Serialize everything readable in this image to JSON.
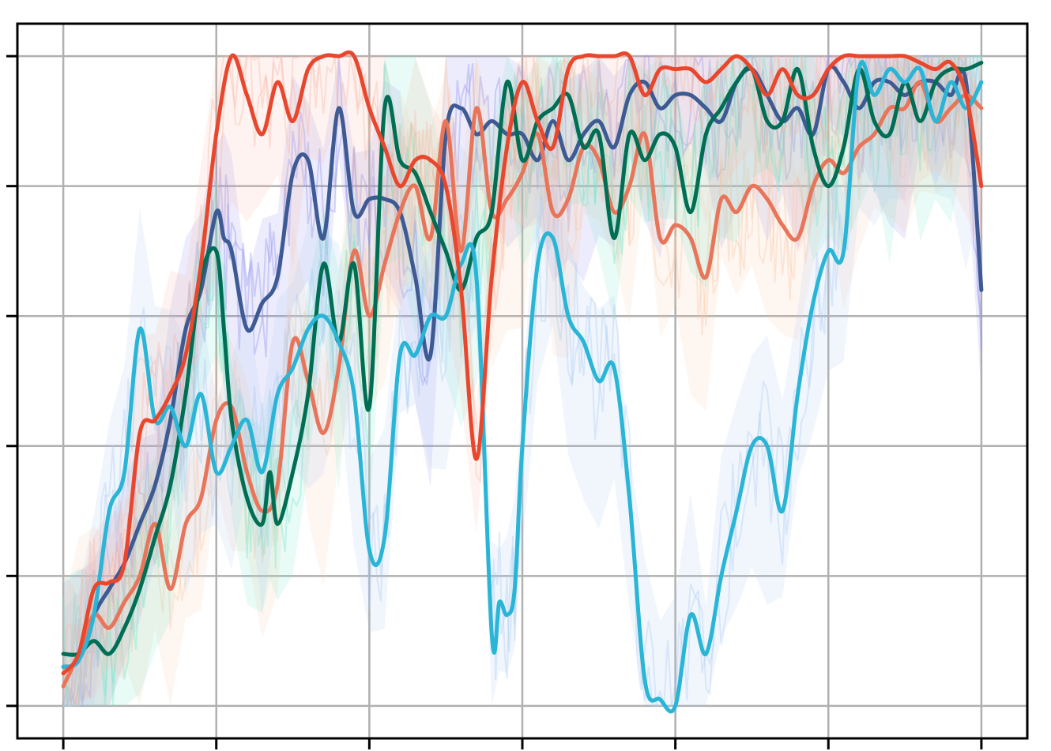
{
  "chart_data": {
    "type": "line",
    "title": "",
    "xlabel": "",
    "ylabel": "",
    "xlim": [
      -0.3,
      6.3
    ],
    "ylim": [
      -0.25,
      5.25
    ],
    "xticks": [
      0,
      1,
      2,
      3,
      4,
      5,
      6
    ],
    "yticks": [
      0,
      1,
      2,
      3,
      4,
      5
    ],
    "grid": true,
    "legend": "none",
    "tick_labels_visible": false,
    "series": [
      {
        "color": "#3d5a93",
        "band": "#8b8bef",
        "x": [
          0,
          0.1,
          0.2,
          0.3,
          0.4,
          0.5,
          0.6,
          0.7,
          0.8,
          0.9,
          1.0,
          1.05,
          1.1,
          1.2,
          1.3,
          1.4,
          1.5,
          1.6,
          1.7,
          1.8,
          1.9,
          2.0,
          2.1,
          2.2,
          2.3,
          2.4,
          2.5,
          2.6,
          2.7,
          2.8,
          2.9,
          3.0,
          3.1,
          3.2,
          3.3,
          3.4,
          3.5,
          3.6,
          3.7,
          3.8,
          3.9,
          4.0,
          4.1,
          4.2,
          4.3,
          4.4,
          4.5,
          4.6,
          4.7,
          4.8,
          4.9,
          5.0,
          5.1,
          5.2,
          5.3,
          5.4,
          5.5,
          5.6,
          5.7,
          5.8,
          5.9,
          6.0
        ],
        "y": [
          0.3,
          0.35,
          0.7,
          0.9,
          1.1,
          1.4,
          1.7,
          2.2,
          2.9,
          3.2,
          3.8,
          3.6,
          3.5,
          2.9,
          3.1,
          3.3,
          4.1,
          4.2,
          3.6,
          4.6,
          3.8,
          3.9,
          3.9,
          3.8,
          3.3,
          2.7,
          4.4,
          4.6,
          4.4,
          4.5,
          4.4,
          4.4,
          4.2,
          4.5,
          4.2,
          4.4,
          4.5,
          4.3,
          4.7,
          4.8,
          4.6,
          4.7,
          4.7,
          4.6,
          4.5,
          4.8,
          4.9,
          4.7,
          4.5,
          4.6,
          4.4,
          4.9,
          4.8,
          4.6,
          4.8,
          4.8,
          4.7,
          4.8,
          4.8,
          4.7,
          4.8,
          3.2
        ]
      },
      {
        "color": "#e8755a",
        "band": "#fbc6a4",
        "x": [
          0,
          0.1,
          0.2,
          0.3,
          0.4,
          0.5,
          0.6,
          0.7,
          0.8,
          0.9,
          1.0,
          1.1,
          1.2,
          1.3,
          1.4,
          1.5,
          1.6,
          1.7,
          1.8,
          1.9,
          2.0,
          2.1,
          2.2,
          2.3,
          2.4,
          2.5,
          2.6,
          2.7,
          2.8,
          2.9,
          3.0,
          3.1,
          3.2,
          3.3,
          3.4,
          3.5,
          3.6,
          3.7,
          3.8,
          3.9,
          4.0,
          4.1,
          4.2,
          4.3,
          4.4,
          4.5,
          4.6,
          4.7,
          4.8,
          4.9,
          5.0,
          5.1,
          5.2,
          5.3,
          5.4,
          5.5,
          5.6,
          5.7,
          5.8,
          5.9,
          6.0
        ],
        "y": [
          0.15,
          0.4,
          0.7,
          0.6,
          0.8,
          1.0,
          1.4,
          0.9,
          1.4,
          1.6,
          2.2,
          2.3,
          1.8,
          1.5,
          1.7,
          2.8,
          2.5,
          2.1,
          2.6,
          3.5,
          3.0,
          3.4,
          3.8,
          4.0,
          3.6,
          4.5,
          3.5,
          4.6,
          3.8,
          3.9,
          4.1,
          4.4,
          3.8,
          3.9,
          4.3,
          4.2,
          3.8,
          4.0,
          4.4,
          3.6,
          3.7,
          3.6,
          3.3,
          3.9,
          3.8,
          4.0,
          3.9,
          3.7,
          3.6,
          4.0,
          4.2,
          4.1,
          4.3,
          4.4,
          4.6,
          4.6,
          4.8,
          4.5,
          4.6,
          4.7,
          4.6
        ]
      },
      {
        "color": "#006e54",
        "band": "#6ee6c8",
        "x": [
          0,
          0.1,
          0.2,
          0.3,
          0.4,
          0.5,
          0.6,
          0.7,
          0.8,
          0.9,
          1.0,
          1.05,
          1.1,
          1.2,
          1.3,
          1.35,
          1.4,
          1.5,
          1.6,
          1.7,
          1.8,
          1.9,
          2.0,
          2.1,
          2.2,
          2.3,
          2.4,
          2.5,
          2.6,
          2.7,
          2.8,
          2.9,
          3.0,
          3.1,
          3.2,
          3.3,
          3.4,
          3.5,
          3.6,
          3.7,
          3.8,
          3.9,
          4.0,
          4.1,
          4.2,
          4.3,
          4.4,
          4.5,
          4.6,
          4.7,
          4.8,
          4.9,
          5.0,
          5.1,
          5.2,
          5.3,
          5.4,
          5.5,
          5.6,
          5.7,
          5.8,
          5.9,
          6.0
        ],
        "y": [
          0.4,
          0.4,
          0.5,
          0.4,
          0.6,
          0.9,
          1.3,
          1.7,
          2.4,
          3.3,
          3.5,
          2.9,
          2.2,
          1.6,
          1.4,
          1.8,
          1.4,
          1.8,
          2.4,
          3.4,
          2.8,
          3.4,
          2.3,
          4.6,
          4.2,
          4.1,
          3.8,
          3.5,
          3.2,
          3.6,
          3.8,
          4.8,
          4.2,
          4.5,
          4.6,
          4.7,
          4.3,
          4.4,
          3.6,
          4.4,
          4.2,
          4.4,
          4.3,
          3.8,
          4.4,
          4.6,
          4.8,
          4.9,
          4.5,
          4.5,
          4.9,
          4.3,
          4.0,
          4.3,
          4.9,
          4.5,
          4.4,
          4.8,
          4.5,
          4.8,
          4.9,
          4.9,
          4.95
        ]
      },
      {
        "color": "#29b5d6",
        "band": "#a7c8f2",
        "x": [
          0,
          0.1,
          0.2,
          0.3,
          0.4,
          0.5,
          0.6,
          0.7,
          0.8,
          0.9,
          1.0,
          1.1,
          1.2,
          1.3,
          1.4,
          1.5,
          1.6,
          1.7,
          1.8,
          1.9,
          2.0,
          2.1,
          2.2,
          2.3,
          2.4,
          2.5,
          2.6,
          2.7,
          2.8,
          2.85,
          2.9,
          2.95,
          3.0,
          3.1,
          3.2,
          3.3,
          3.4,
          3.5,
          3.6,
          3.7,
          3.8,
          3.9,
          4.0,
          4.1,
          4.2,
          4.3,
          4.4,
          4.5,
          4.6,
          4.7,
          4.8,
          4.9,
          5.0,
          5.1,
          5.2,
          5.3,
          5.4,
          5.5,
          5.6,
          5.7,
          5.8,
          5.9,
          6.0
        ],
        "y": [
          0.3,
          0.35,
          0.7,
          1.5,
          1.8,
          2.9,
          2.2,
          2.3,
          2.0,
          2.4,
          1.8,
          2.0,
          2.2,
          1.8,
          2.4,
          2.6,
          2.9,
          3.0,
          2.8,
          2.4,
          1.2,
          1.3,
          2.7,
          2.7,
          3.0,
          3.0,
          3.4,
          3.3,
          0.55,
          0.8,
          0.7,
          0.9,
          2.0,
          3.4,
          3.6,
          3.0,
          2.8,
          2.5,
          2.6,
          1.6,
          0.2,
          0.05,
          0.0,
          0.7,
          0.4,
          1.0,
          1.5,
          2.0,
          2.0,
          1.5,
          2.4,
          3.1,
          3.5,
          3.5,
          4.9,
          4.7,
          4.9,
          4.8,
          4.9,
          4.5,
          4.8,
          4.6,
          4.8
        ]
      },
      {
        "color": "#e8472e",
        "band": "#f6b4a4",
        "x": [
          0,
          0.1,
          0.2,
          0.3,
          0.4,
          0.5,
          0.6,
          0.7,
          0.8,
          0.9,
          1.0,
          1.1,
          1.2,
          1.3,
          1.4,
          1.5,
          1.6,
          1.7,
          1.8,
          1.9,
          2.0,
          2.1,
          2.2,
          2.3,
          2.4,
          2.5,
          2.6,
          2.7,
          2.8,
          2.9,
          3.0,
          3.1,
          3.2,
          3.3,
          3.4,
          3.5,
          3.6,
          3.7,
          3.8,
          3.9,
          4.0,
          4.1,
          4.2,
          4.3,
          4.4,
          4.5,
          4.6,
          4.7,
          4.8,
          4.9,
          5.0,
          5.1,
          5.2,
          5.3,
          5.4,
          5.5,
          5.6,
          5.7,
          5.8,
          5.9,
          6.0
        ],
        "y": [
          0.25,
          0.4,
          0.9,
          0.95,
          1.1,
          2.1,
          2.2,
          2.4,
          2.7,
          3.4,
          4.4,
          5.0,
          4.7,
          4.4,
          4.8,
          4.5,
          4.9,
          5.0,
          5.0,
          5.0,
          4.6,
          4.3,
          4.0,
          4.2,
          4.2,
          4.0,
          3.2,
          1.9,
          3.3,
          4.3,
          4.8,
          4.5,
          4.3,
          4.9,
          5.0,
          5.0,
          5.0,
          5.0,
          4.7,
          4.9,
          4.9,
          4.9,
          4.8,
          4.9,
          5.0,
          4.9,
          4.7,
          4.9,
          4.7,
          4.7,
          4.9,
          5.0,
          5.0,
          5.0,
          5.0,
          5.0,
          4.95,
          4.9,
          4.95,
          4.7,
          4.0
        ]
      }
    ]
  }
}
